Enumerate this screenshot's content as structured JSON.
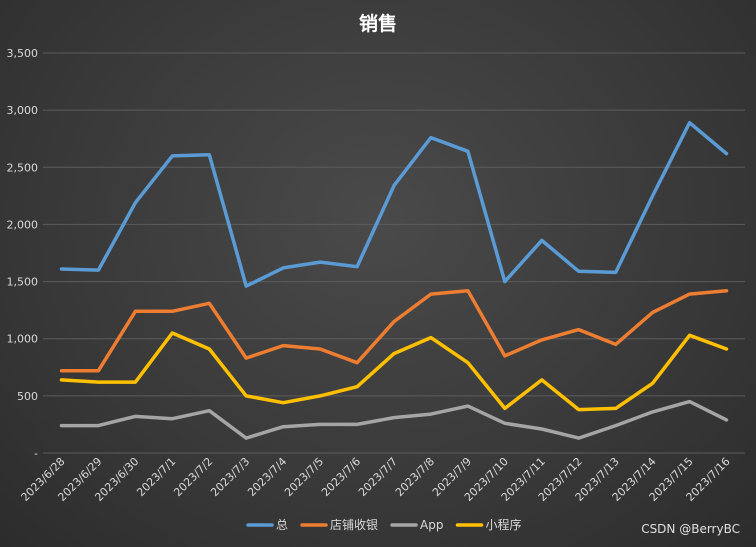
{
  "watermark": "CSDN @BerryBC",
  "chart_data": {
    "type": "line",
    "title": "销售",
    "xlabel": "",
    "ylabel": "",
    "ylim": [
      0,
      3500
    ],
    "yticks": [
      0,
      500,
      1000,
      1500,
      2000,
      2500,
      3000,
      3500
    ],
    "ytick_labels": [
      "-",
      "500",
      "1,000",
      "1,500",
      "2,000",
      "2,500",
      "3,000",
      "3,500"
    ],
    "grid": true,
    "legend_position": "bottom",
    "categories": [
      "2023/6/28",
      "2023/6/29",
      "2023/6/30",
      "2023/7/1",
      "2023/7/2",
      "2023/7/3",
      "2023/7/4",
      "2023/7/5",
      "2023/7/6",
      "2023/7/7",
      "2023/7/8",
      "2023/7/9",
      "2023/7/10",
      "2023/7/11",
      "2023/7/12",
      "2023/7/13",
      "2023/7/14",
      "2023/7/15",
      "2023/7/16"
    ],
    "series": [
      {
        "name": "总",
        "color": "#5b9bd5",
        "values": [
          1610,
          1600,
          2190,
          2600,
          2610,
          1460,
          1620,
          1670,
          1630,
          2340,
          2760,
          2640,
          1500,
          1860,
          1590,
          1580,
          2250,
          2890,
          2620
        ]
      },
      {
        "name": "店铺收银",
        "color": "#ed7d31",
        "values": [
          720,
          720,
          1240,
          1240,
          1310,
          830,
          940,
          910,
          790,
          1150,
          1390,
          1420,
          850,
          990,
          1080,
          950,
          1230,
          1390,
          1420
        ]
      },
      {
        "name": "App",
        "color": "#a5a5a5",
        "values": [
          240,
          240,
          320,
          300,
          370,
          130,
          230,
          250,
          250,
          310,
          340,
          410,
          260,
          210,
          130,
          240,
          360,
          450,
          290
        ]
      },
      {
        "name": "小程序",
        "color": "#ffc000",
        "values": [
          640,
          620,
          620,
          1050,
          910,
          500,
          440,
          500,
          580,
          870,
          1010,
          790,
          390,
          640,
          380,
          390,
          610,
          1030,
          910
        ]
      }
    ]
  }
}
